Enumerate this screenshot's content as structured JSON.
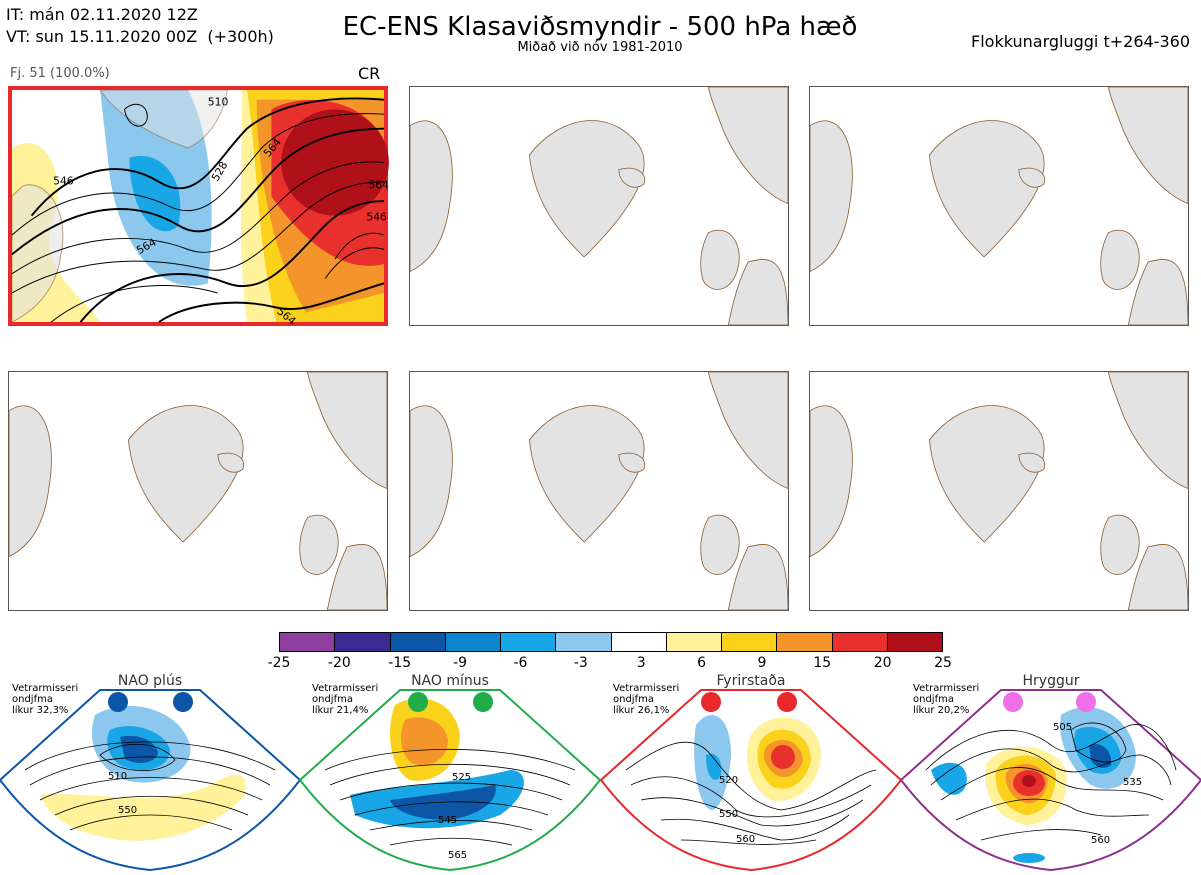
{
  "header": {
    "init_line": "IT: mán 02.11.2020 12Z",
    "valid_line": "VT: sun 15.11.2020 00Z  (+300h)",
    "title": "EC-ENS Klasaviðsmyndir - 500 hPa hæð",
    "subtitle": "Miðað við nóv 1981-2010",
    "window": "Flokkunargluggi t+264-360"
  },
  "active_panel": {
    "member_label": "Fj. 51 (100.0%)",
    "cluster_code": "CR",
    "contour_labels": [
      "510",
      "528",
      "546",
      "564",
      "564",
      "564",
      "546",
      "564"
    ],
    "border_color": "#e8282a"
  },
  "colorbar": {
    "ticks": [
      "-25",
      "-20",
      "-15",
      "-9",
      "-6",
      "-3",
      "3",
      "6",
      "9",
      "15",
      "20",
      "25"
    ],
    "colors": [
      "#8e3fa0",
      "#3a2b92",
      "#0b56a6",
      "#0b86cc",
      "#19a6e6",
      "#8cc8ee",
      "#ffffff",
      "#fff29a",
      "#fbd21b",
      "#f3952a",
      "#e8302c",
      "#b0101a"
    ]
  },
  "regimes": [
    {
      "name": "NAO plús",
      "note": [
        "Vetrarmisseri",
        "ondjfma",
        "líkur 32,3%"
      ],
      "dot_color": "#0b56a6",
      "border_color": "#0b56a6",
      "labels": [
        "510",
        "550"
      ]
    },
    {
      "name": "NAO mínus",
      "note": [
        "Vetrarmisseri",
        "ondjfma",
        "líkur 21,4%"
      ],
      "dot_color": "#21ac4a",
      "border_color": "#21ac4a",
      "labels": [
        "525",
        "545",
        "565"
      ]
    },
    {
      "name": "Fyrirstaða",
      "note": [
        "Vetrarmisseri",
        "ondjfma",
        "líkur 26,1%"
      ],
      "dot_color": "#e8282a",
      "border_color": "#e8282a",
      "labels": [
        "520",
        "550",
        "560"
      ]
    },
    {
      "name": "Hryggur",
      "note": [
        "Vetrarmisseri",
        "ondjfma",
        "líkur 20,2%"
      ],
      "dot_color": "#ee6fe8",
      "border_color": "#8e2f8e",
      "labels": [
        "505",
        "535",
        "560"
      ]
    }
  ]
}
